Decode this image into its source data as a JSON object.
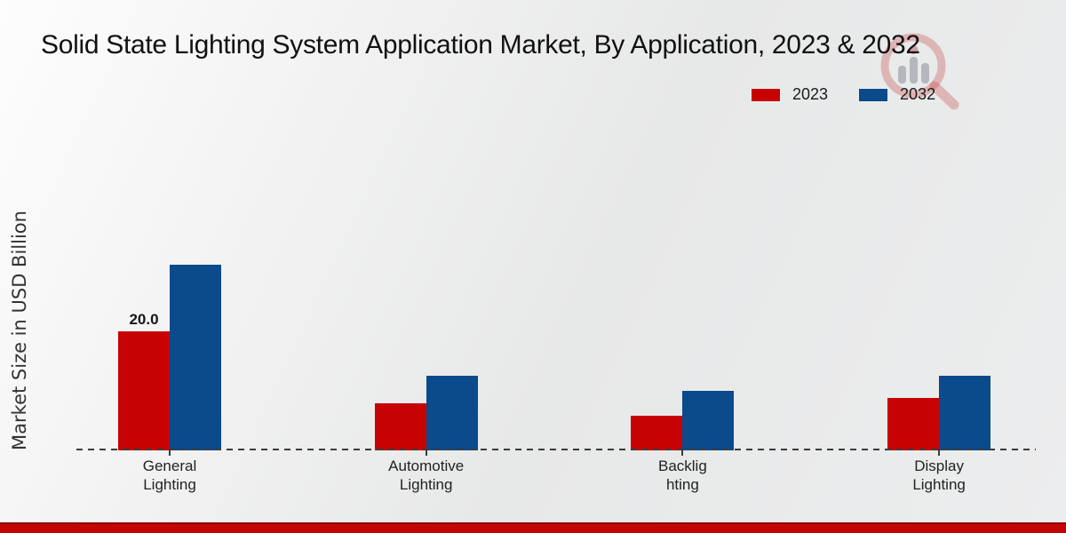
{
  "chart_data": {
    "type": "bar",
    "title": "Solid State Lighting System Application Market, By Application, 2023 & 2032",
    "ylabel": "Market Size in USD Billion",
    "categories": [
      "General Lighting",
      "Automotive Lighting",
      "Backlighting",
      "Display Lighting"
    ],
    "category_label_lines": [
      [
        "General",
        "Lighting"
      ],
      [
        "Automotive",
        "Lighting"
      ],
      [
        "Backlig",
        "hting"
      ],
      [
        "Display",
        "Lighting"
      ]
    ],
    "series": [
      {
        "name": "2023",
        "color": "#c60202",
        "values": [
          20.0,
          7.9,
          5.8,
          8.8
        ]
      },
      {
        "name": "2032",
        "color": "#0b4a8b",
        "values": [
          31.2,
          12.5,
          10.0,
          12.5
        ]
      }
    ],
    "data_labels": [
      {
        "series_index": 0,
        "category_index": 0,
        "text": "20.0"
      }
    ],
    "ylim": [
      0,
      35
    ],
    "grid": false,
    "legend_position": "top-right",
    "baseline_style": "dashed",
    "y_axis_ticks_visible": false
  },
  "colors": {
    "series_2023": "#c60202",
    "series_2032": "#0b4a8b",
    "footer_bar": "#c20404",
    "footer_bar_top_edge": "#8e0808",
    "baseline": "#3c3c3c",
    "title_text": "#111111",
    "axis_text": "#222222",
    "background": "#ebecec"
  }
}
